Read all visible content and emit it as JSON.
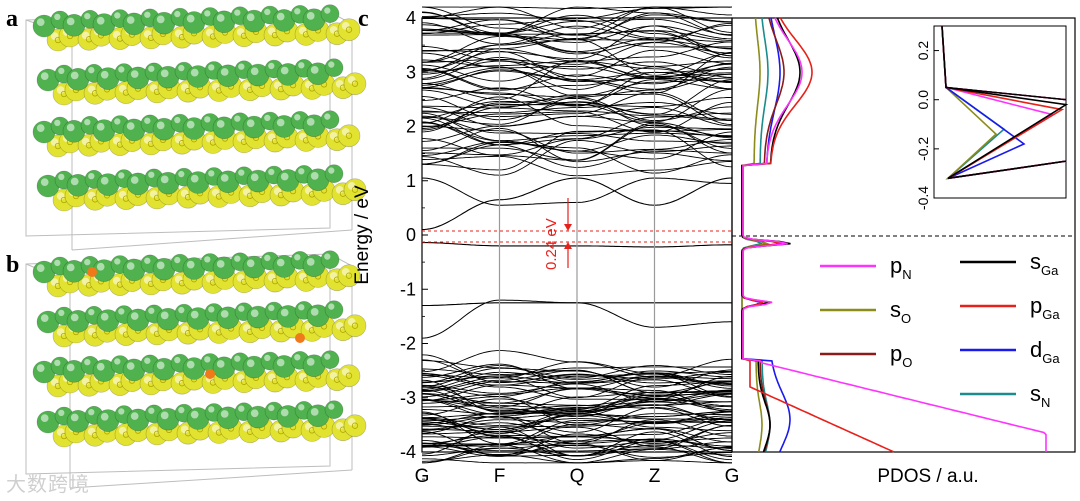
{
  "figure": {
    "panel_labels": {
      "a": "a",
      "b": "b",
      "c": "c"
    },
    "colors": {
      "green_atom": "#4fb24f",
      "yellow_atom": "#e2e231",
      "orange_atom": "#f07a1a",
      "p_N": "#ff33ff",
      "s_O": "#8c8c1a",
      "p_O": "#8b1a1a",
      "s_Ga": "#000000",
      "p_Ga": "#e8201a",
      "d_Ga": "#1a1aee",
      "s_N": "#1a8c8c",
      "gap_marker": "#e8201a"
    },
    "gap_label": "0.24 eV",
    "watermark": "大数跨境"
  },
  "chart_data": [
    {
      "type": "line",
      "name": "band-structure",
      "ylabel": "Energy / eV",
      "xlabel": "",
      "ylim": [
        -4,
        4
      ],
      "yticks": [
        -4,
        -3,
        -2,
        -1,
        0,
        1,
        2,
        3,
        4
      ],
      "kpoints": [
        "G",
        "F",
        "Q",
        "Z",
        "G"
      ],
      "fermi_level": 0,
      "gap_eV": 0.24,
      "bands_highlighted": [
        {
          "label": "conduction-band-minimum",
          "energies": [
            0.1,
            0.65,
            1.05,
            0.55,
            1.05
          ]
        },
        {
          "label": "valence-band-maximum",
          "energies": [
            -0.14,
            -0.2,
            -0.2,
            -0.22,
            -0.18
          ]
        },
        {
          "label": "mid-band",
          "energies": [
            -1.3,
            -1.25,
            -1.25,
            -1.25,
            -1.25
          ]
        }
      ]
    },
    {
      "type": "line",
      "name": "pdos",
      "xlabel": "PDOS / a.u.",
      "ylim": [
        -4,
        4
      ],
      "legend": [
        "pN",
        "sO",
        "pO",
        "sGa",
        "pGa",
        "dGa",
        "sN"
      ],
      "legend_text": {
        "pN": {
          "main": "p",
          "sub": "N"
        },
        "sO": {
          "main": "s",
          "sub": "O"
        },
        "pO": {
          "main": "p",
          "sub": "O"
        },
        "sGa": {
          "main": "s",
          "sub": "Ga"
        },
        "pGa": {
          "main": "p",
          "sub": "Ga"
        },
        "dGa": {
          "main": "d",
          "sub": "Ga"
        },
        "sN": {
          "main": "s",
          "sub": "N"
        }
      },
      "inset": {
        "ylim": [
          -0.4,
          0.3
        ],
        "yticks": [
          0.2,
          0.0,
          -0.2,
          -0.4
        ],
        "ytick_labels": [
          "0.2",
          "0.0",
          "-0.2",
          "-0.4"
        ]
      }
    }
  ]
}
